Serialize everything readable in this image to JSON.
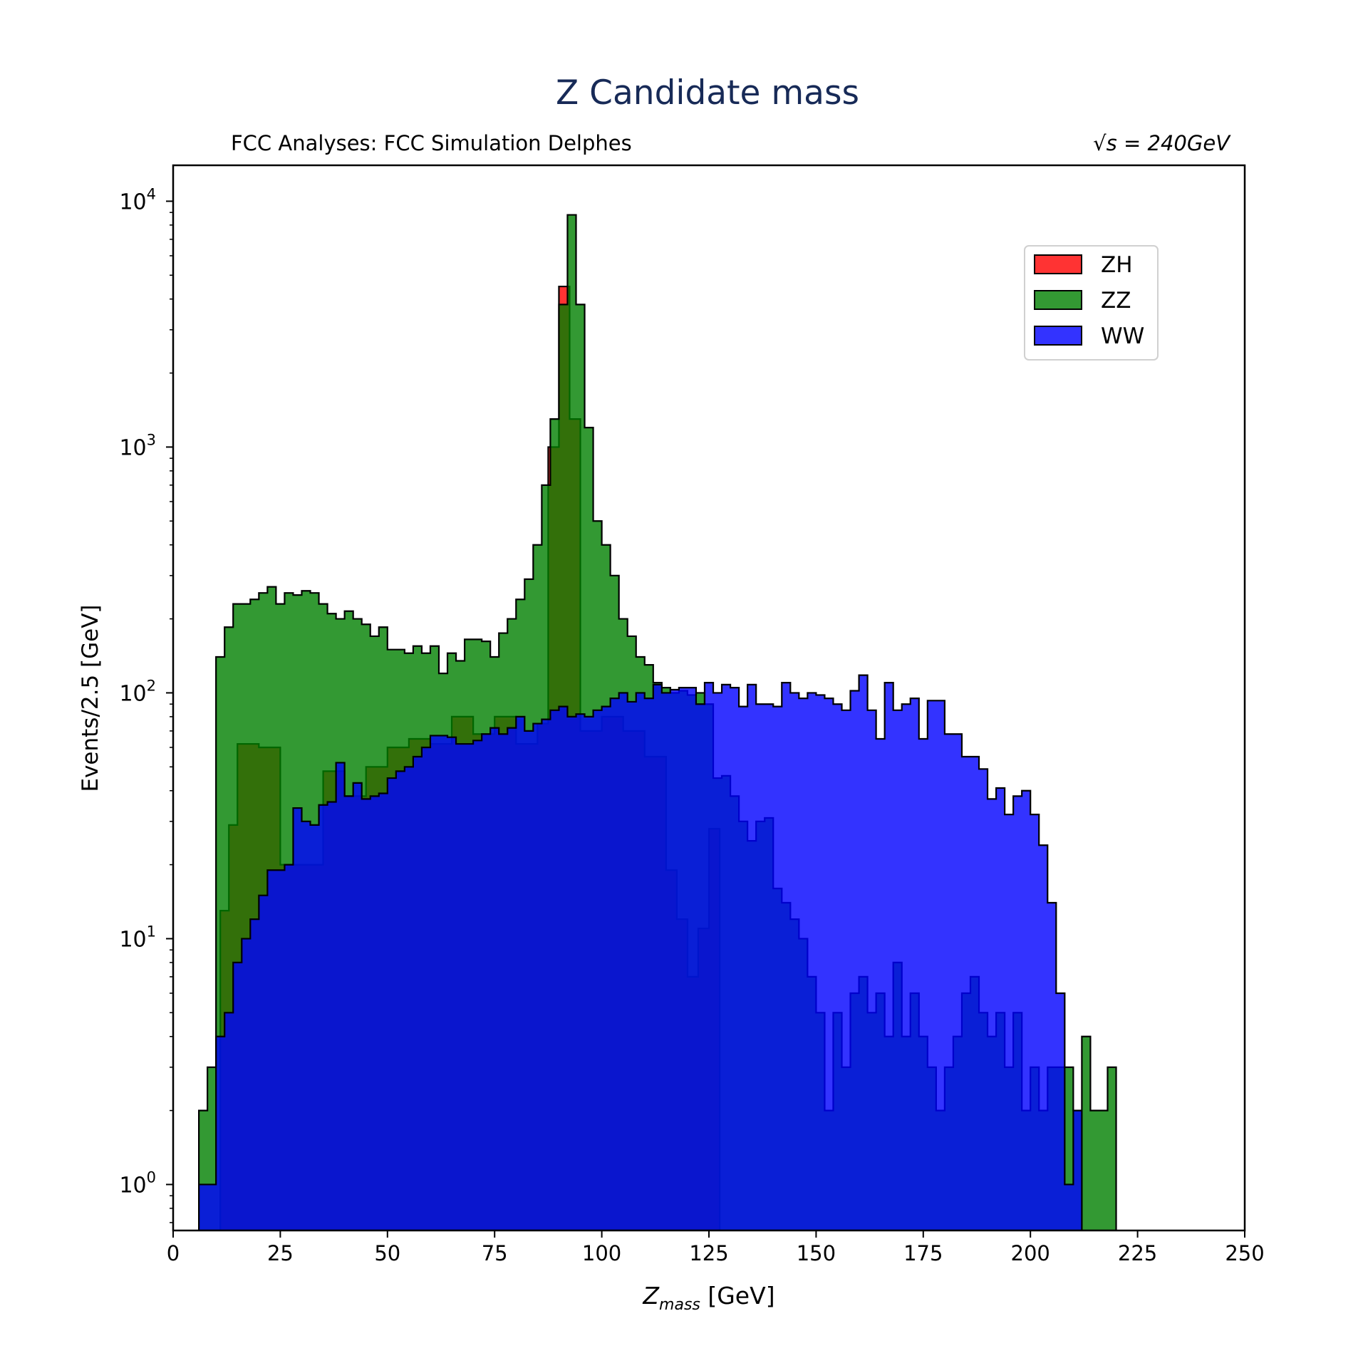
{
  "chart_data": {
    "type": "histogram",
    "title": "Z Candidate mass",
    "subtitle_left": "FCC Analyses: FCC Simulation Delphes",
    "subtitle_right": "√s = 240GeV",
    "xlabel": "Z_mass [GeV]",
    "xlabel_main": "Z",
    "xlabel_sub": "mass",
    "xlabel_unit": " [GeV]",
    "ylabel": "Events/2.5 [GeV]",
    "y_scale": "log",
    "xlim": [
      0,
      250
    ],
    "ylim": [
      0.65,
      14000
    ],
    "bin_width": 2.5,
    "x_ticks": [
      0,
      25,
      50,
      75,
      100,
      125,
      150,
      175,
      200,
      225,
      250
    ],
    "y_ticks": [
      1,
      10,
      100,
      1000,
      10000
    ],
    "y_tick_labels": [
      {
        "base": "10",
        "exp": "0"
      },
      {
        "base": "10",
        "exp": "1"
      },
      {
        "base": "10",
        "exp": "2"
      },
      {
        "base": "10",
        "exp": "3"
      },
      {
        "base": "10",
        "exp": "4"
      }
    ],
    "grid": false,
    "legend_position": "top-right",
    "series": [
      {
        "name": "ZH",
        "color": "#ff0000",
        "fill_opacity": 0.8,
        "bins": [
          [
            6,
            0
          ],
          [
            8.5,
            0
          ],
          [
            11,
            13
          ],
          [
            13,
            29
          ],
          [
            15,
            62
          ],
          [
            20,
            60
          ],
          [
            25,
            20
          ],
          [
            35,
            48
          ],
          [
            40,
            38
          ],
          [
            45,
            50
          ],
          [
            50,
            60
          ],
          [
            55,
            65
          ],
          [
            60,
            62
          ],
          [
            65,
            80
          ],
          [
            70,
            68
          ],
          [
            75,
            80
          ],
          [
            80,
            62
          ],
          [
            85,
            75
          ],
          [
            87.5,
            1000
          ],
          [
            90,
            4500
          ],
          [
            92.5,
            1300
          ],
          [
            95,
            70
          ],
          [
            100,
            80
          ],
          [
            105,
            70
          ],
          [
            110,
            55
          ],
          [
            115,
            19
          ],
          [
            117.5,
            12
          ],
          [
            120,
            7
          ],
          [
            122.5,
            11
          ],
          [
            125,
            28
          ],
          [
            127.5,
            0
          ]
        ]
      },
      {
        "name": "ZZ",
        "color": "#008000",
        "fill_opacity": 0.8,
        "bins": [
          [
            6,
            2
          ],
          [
            8,
            3
          ],
          [
            10,
            140
          ],
          [
            12,
            185
          ],
          [
            14,
            230
          ],
          [
            16,
            230
          ],
          [
            18,
            240
          ],
          [
            20,
            255
          ],
          [
            22,
            270
          ],
          [
            24,
            230
          ],
          [
            26,
            255
          ],
          [
            28,
            250
          ],
          [
            30,
            260
          ],
          [
            32,
            255
          ],
          [
            34,
            230
          ],
          [
            36,
            210
          ],
          [
            38,
            200
          ],
          [
            40,
            215
          ],
          [
            42,
            200
          ],
          [
            44,
            190
          ],
          [
            46,
            170
          ],
          [
            48,
            185
          ],
          [
            50,
            150
          ],
          [
            52,
            150
          ],
          [
            54,
            145
          ],
          [
            56,
            155
          ],
          [
            58,
            145
          ],
          [
            60,
            155
          ],
          [
            62,
            120
          ],
          [
            64,
            145
          ],
          [
            66,
            135
          ],
          [
            68,
            165
          ],
          [
            70,
            165
          ],
          [
            72,
            162
          ],
          [
            74,
            140
          ],
          [
            76,
            175
          ],
          [
            78,
            200
          ],
          [
            80,
            240
          ],
          [
            82,
            290
          ],
          [
            84,
            400
          ],
          [
            86,
            700
          ],
          [
            88,
            1300
          ],
          [
            90,
            3800
          ],
          [
            92,
            8800
          ],
          [
            94,
            3800
          ],
          [
            96,
            1200
          ],
          [
            98,
            500
          ],
          [
            100,
            400
          ],
          [
            102,
            300
          ],
          [
            104,
            200
          ],
          [
            106,
            170
          ],
          [
            108,
            140
          ],
          [
            110,
            130
          ],
          [
            112,
            110
          ],
          [
            114,
            105
          ],
          [
            116,
            100
          ],
          [
            118,
            102
          ],
          [
            120,
            98
          ],
          [
            122,
            100
          ],
          [
            124,
            90
          ],
          [
            126,
            45
          ],
          [
            128,
            46
          ],
          [
            130,
            38
          ],
          [
            132,
            30
          ],
          [
            134,
            25
          ],
          [
            136,
            30
          ],
          [
            138,
            31
          ],
          [
            140,
            16
          ],
          [
            142,
            14
          ],
          [
            144,
            12
          ],
          [
            146,
            10
          ],
          [
            148,
            7
          ],
          [
            150,
            5
          ],
          [
            152,
            2
          ],
          [
            154,
            5
          ],
          [
            156,
            3
          ],
          [
            158,
            6
          ],
          [
            160,
            7
          ],
          [
            162,
            5
          ],
          [
            164,
            6
          ],
          [
            166,
            4
          ],
          [
            168,
            8
          ],
          [
            170,
            4
          ],
          [
            172,
            6
          ],
          [
            174,
            4
          ],
          [
            176,
            3
          ],
          [
            178,
            2
          ],
          [
            180,
            3
          ],
          [
            182,
            4
          ],
          [
            184,
            6
          ],
          [
            186,
            7
          ],
          [
            188,
            5
          ],
          [
            190,
            4
          ],
          [
            192,
            5
          ],
          [
            194,
            3
          ],
          [
            196,
            5
          ],
          [
            198,
            2
          ],
          [
            200,
            3
          ],
          [
            202,
            2
          ],
          [
            204,
            3
          ],
          [
            206,
            3
          ],
          [
            208,
            3
          ],
          [
            210,
            2
          ],
          [
            212,
            4
          ],
          [
            214,
            2
          ],
          [
            216,
            2
          ],
          [
            218,
            3
          ],
          [
            220,
            0
          ]
        ]
      },
      {
        "name": "WW",
        "color": "#0000ff",
        "fill_opacity": 0.8,
        "bins": [
          [
            6,
            1
          ],
          [
            8,
            1
          ],
          [
            10,
            4
          ],
          [
            12,
            5
          ],
          [
            14,
            8
          ],
          [
            16,
            10
          ],
          [
            18,
            12
          ],
          [
            20,
            15
          ],
          [
            22,
            19
          ],
          [
            24,
            19
          ],
          [
            26,
            20
          ],
          [
            28,
            34
          ],
          [
            30,
            30
          ],
          [
            32,
            29
          ],
          [
            34,
            35
          ],
          [
            36,
            36
          ],
          [
            38,
            52
          ],
          [
            40,
            38
          ],
          [
            42,
            43
          ],
          [
            44,
            37
          ],
          [
            46,
            38
          ],
          [
            48,
            39
          ],
          [
            50,
            45
          ],
          [
            52,
            48
          ],
          [
            54,
            50
          ],
          [
            56,
            55
          ],
          [
            58,
            60
          ],
          [
            60,
            67
          ],
          [
            62,
            67
          ],
          [
            64,
            66
          ],
          [
            66,
            62
          ],
          [
            68,
            62
          ],
          [
            70,
            64
          ],
          [
            72,
            68
          ],
          [
            74,
            72
          ],
          [
            76,
            68
          ],
          [
            78,
            72
          ],
          [
            80,
            80
          ],
          [
            82,
            70
          ],
          [
            84,
            75
          ],
          [
            86,
            78
          ],
          [
            88,
            85
          ],
          [
            90,
            88
          ],
          [
            92,
            80
          ],
          [
            94,
            82
          ],
          [
            96,
            80
          ],
          [
            98,
            85
          ],
          [
            100,
            88
          ],
          [
            102,
            95
          ],
          [
            104,
            100
          ],
          [
            106,
            92
          ],
          [
            108,
            100
          ],
          [
            110,
            95
          ],
          [
            112,
            108
          ],
          [
            114,
            100
          ],
          [
            116,
            103
          ],
          [
            118,
            105
          ],
          [
            120,
            105
          ],
          [
            122,
            90
          ],
          [
            124,
            110
          ],
          [
            126,
            100
          ],
          [
            128,
            108
          ],
          [
            130,
            105
          ],
          [
            132,
            88
          ],
          [
            134,
            108
          ],
          [
            136,
            90
          ],
          [
            138,
            90
          ],
          [
            140,
            88
          ],
          [
            142,
            110
          ],
          [
            144,
            100
          ],
          [
            146,
            95
          ],
          [
            148,
            100
          ],
          [
            150,
            98
          ],
          [
            152,
            95
          ],
          [
            154,
            90
          ],
          [
            156,
            85
          ],
          [
            158,
            102
          ],
          [
            160,
            118
          ],
          [
            162,
            85
          ],
          [
            164,
            65
          ],
          [
            166,
            110
          ],
          [
            168,
            85
          ],
          [
            170,
            90
          ],
          [
            172,
            95
          ],
          [
            174,
            65
          ],
          [
            176,
            93
          ],
          [
            178,
            93
          ],
          [
            180,
            68
          ],
          [
            182,
            68
          ],
          [
            184,
            55
          ],
          [
            186,
            55
          ],
          [
            188,
            49
          ],
          [
            190,
            37
          ],
          [
            192,
            41
          ],
          [
            194,
            32
          ],
          [
            196,
            38
          ],
          [
            198,
            40
          ],
          [
            200,
            32
          ],
          [
            202,
            24
          ],
          [
            204,
            14
          ],
          [
            206,
            6
          ],
          [
            208,
            1
          ],
          [
            210,
            2
          ],
          [
            212,
            0
          ]
        ]
      }
    ]
  }
}
